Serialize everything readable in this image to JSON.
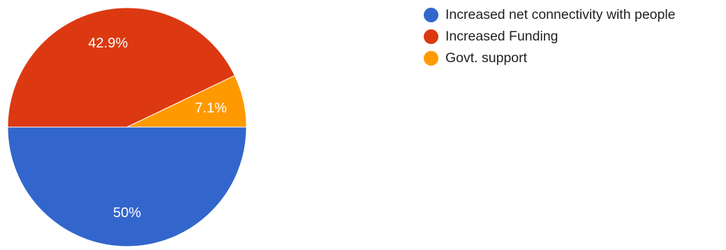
{
  "chart_data": {
    "type": "pie",
    "title": "",
    "categories": [
      "Increased net connectivity with people",
      "Increased Funding",
      "Govt. support"
    ],
    "values": [
      50,
      42.9,
      7.1
    ],
    "value_labels": [
      "50%",
      "42.9%",
      "7.1%"
    ],
    "colors": [
      "#3366cc",
      "#dc3912",
      "#ff9900"
    ],
    "legend_position": "top-right"
  }
}
